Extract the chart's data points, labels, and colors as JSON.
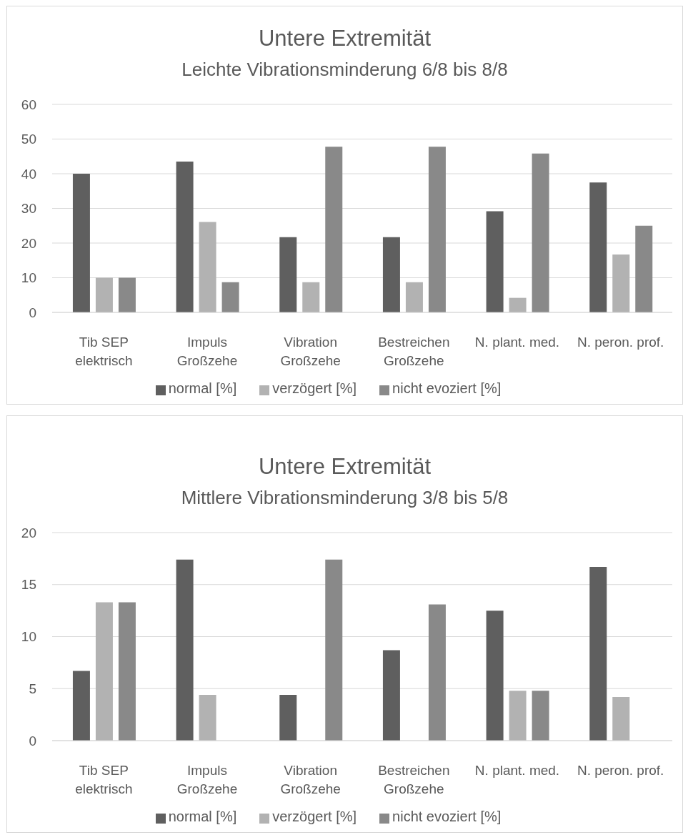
{
  "chart_data": [
    {
      "type": "bar",
      "title": "Untere Extremität",
      "subtitle": "Leichte Vibrationsminderung 6/8 bis 8/8",
      "categories": [
        "Tib SEP elektrisch",
        "Impuls Großzehe",
        "Vibration Großzehe",
        "Bestreichen Großzehe",
        "N. plant. med.",
        "N. peron. prof."
      ],
      "series": [
        {
          "name": "normal [%]",
          "color": "#5f5f5f",
          "values": [
            40,
            43.5,
            21.7,
            21.7,
            29.2,
            37.5
          ]
        },
        {
          "name": "verzögert [%]",
          "color": "#b2b2b2",
          "values": [
            10,
            26.1,
            8.7,
            8.7,
            4.2,
            16.7
          ]
        },
        {
          "name": "nicht evoziert [%]",
          "color": "#898989",
          "values": [
            10,
            8.7,
            47.8,
            47.8,
            45.8,
            25
          ]
        }
      ],
      "ylim": [
        0,
        60
      ],
      "yticks": [
        0,
        10,
        20,
        30,
        40,
        50,
        60
      ],
      "grid": "y",
      "legend": "bottom"
    },
    {
      "type": "bar",
      "title": "Untere Extremität",
      "subtitle": "Mittlere Vibrationsminderung 3/8 bis 5/8",
      "categories": [
        "Tib SEP elektrisch",
        "Impuls Großzehe",
        "Vibration Großzehe",
        "Bestreichen Großzehe",
        "N. plant. med.",
        "N. peron. prof."
      ],
      "series": [
        {
          "name": "normal [%]",
          "color": "#5f5f5f",
          "values": [
            6.7,
            17.4,
            4.4,
            8.7,
            12.5,
            16.7
          ]
        },
        {
          "name": "verzögert [%]",
          "color": "#b2b2b2",
          "values": [
            13.3,
            4.4,
            0,
            0,
            4.8,
            4.2
          ]
        },
        {
          "name": "nicht evoziert [%]",
          "color": "#898989",
          "values": [
            13.3,
            0,
            17.4,
            13.1,
            4.8,
            0
          ]
        }
      ],
      "ylim": [
        0,
        20
      ],
      "yticks": [
        0,
        5,
        10,
        15,
        20
      ],
      "grid": "y",
      "legend": "bottom"
    }
  ]
}
